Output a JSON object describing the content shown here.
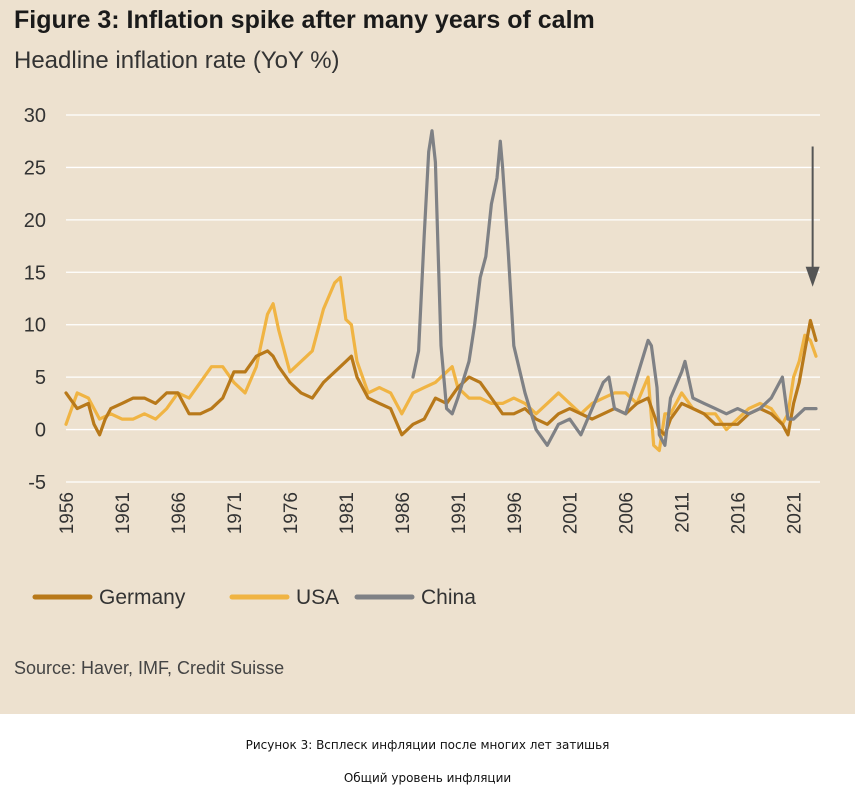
{
  "figure": {
    "title": "Figure 3: Inflation spike after many years of calm",
    "subtitle": "Headline inflation rate (YoY %)",
    "source": "Source: Haver, IMF, Credit Suisse"
  },
  "captions": {
    "line1": "Рисунок 3: Всплеск инфляции после многих лет затишья",
    "line2": "Общий уровень инфляции"
  },
  "colors": {
    "Germany": "#b8791a",
    "USA": "#f0b443",
    "China": "#7f8185",
    "arrow": "#555555",
    "grid": "#ffffff"
  },
  "chart_data": {
    "type": "line",
    "title": "Figure 3: Inflation spike after many years of calm",
    "ylabel": "Headline inflation rate (YoY %)",
    "xlim": [
      1956,
      2023
    ],
    "ylim": [
      -5,
      30
    ],
    "yticks": [
      30,
      25,
      20,
      15,
      10,
      5,
      0,
      -5
    ],
    "xticks": [
      "1956",
      "1961",
      "1966",
      "1971",
      "1976",
      "1981",
      "1986",
      "1991",
      "1996",
      "2001",
      "2006",
      "2011",
      "2016",
      "2021"
    ],
    "legend_position": "bottom",
    "annotation": {
      "type": "arrow",
      "x": 2022.7,
      "from_y": 27,
      "to_y": 14
    },
    "series": [
      {
        "name": "Germany",
        "x": [
          1956,
          1957,
          1958,
          1958.5,
          1959,
          1959.5,
          1960,
          1961,
          1962,
          1963,
          1964,
          1965,
          1966,
          1967,
          1968,
          1969,
          1970,
          1971,
          1972,
          1973,
          1974,
          1974.5,
          1975,
          1976,
          1977,
          1978,
          1979,
          1980,
          1981,
          1981.5,
          1982,
          1983,
          1984,
          1985,
          1986,
          1987,
          1988,
          1989,
          1990,
          1991,
          1992,
          1993,
          1994,
          1995,
          1996,
          1997,
          1998,
          1999,
          2000,
          2001,
          2002,
          2003,
          2004,
          2005,
          2006,
          2007,
          2008,
          2009,
          2009.5,
          2010,
          2011,
          2012,
          2013,
          2014,
          2015,
          2016,
          2017,
          2018,
          2019,
          2020,
          2020.5,
          2021,
          2021.5,
          2022,
          2022.5,
          2023
        ],
        "values": [
          3.5,
          2.0,
          2.5,
          0.5,
          -0.5,
          1.0,
          2.0,
          2.5,
          3.0,
          3.0,
          2.5,
          3.5,
          3.5,
          1.5,
          1.5,
          2.0,
          3.0,
          5.5,
          5.5,
          7.0,
          7.5,
          7.0,
          6.0,
          4.5,
          3.5,
          3.0,
          4.5,
          5.5,
          6.5,
          7.0,
          5.0,
          3.0,
          2.5,
          2.0,
          -0.5,
          0.5,
          1.0,
          3.0,
          2.5,
          4.0,
          5.0,
          4.5,
          3.0,
          1.5,
          1.5,
          2.0,
          1.0,
          0.5,
          1.5,
          2.0,
          1.5,
          1.0,
          1.5,
          2.0,
          1.5,
          2.5,
          3.0,
          0.0,
          -0.5,
          1.0,
          2.5,
          2.0,
          1.5,
          0.5,
          0.5,
          0.5,
          1.5,
          2.0,
          1.5,
          0.5,
          -0.5,
          2.5,
          4.5,
          7.5,
          10.4,
          8.5
        ]
      },
      {
        "name": "USA",
        "x": [
          1956,
          1957,
          1958,
          1959,
          1960,
          1961,
          1962,
          1963,
          1964,
          1965,
          1966,
          1967,
          1968,
          1969,
          1970,
          1971,
          1972,
          1973,
          1974,
          1974.5,
          1975,
          1976,
          1977,
          1978,
          1979,
          1980,
          1980.5,
          1981,
          1981.5,
          1982,
          1983,
          1984,
          1985,
          1986,
          1987,
          1988,
          1989,
          1990,
          1990.5,
          1991,
          1992,
          1993,
          1994,
          1995,
          1996,
          1997,
          1998,
          1999,
          2000,
          2001,
          2002,
          2003,
          2004,
          2005,
          2006,
          2007,
          2008,
          2008.5,
          2009,
          2009.5,
          2010,
          2011,
          2012,
          2013,
          2014,
          2015,
          2016,
          2017,
          2018,
          2019,
          2020,
          2020.5,
          2021,
          2021.5,
          2022,
          2022.5,
          2023
        ],
        "values": [
          0.5,
          3.5,
          3.0,
          1.0,
          1.5,
          1.0,
          1.0,
          1.5,
          1.0,
          2.0,
          3.5,
          3.0,
          4.5,
          6.0,
          6.0,
          4.5,
          3.5,
          6.0,
          11.0,
          12.0,
          9.5,
          5.5,
          6.5,
          7.5,
          11.5,
          14.0,
          14.5,
          10.5,
          10.0,
          6.5,
          3.5,
          4.0,
          3.5,
          1.5,
          3.5,
          4.0,
          4.5,
          5.5,
          6.0,
          4.0,
          3.0,
          3.0,
          2.5,
          2.5,
          3.0,
          2.5,
          1.5,
          2.5,
          3.5,
          2.5,
          1.5,
          2.5,
          3.0,
          3.5,
          3.5,
          2.5,
          5.0,
          -1.5,
          -2.0,
          1.5,
          1.5,
          3.5,
          2.0,
          1.5,
          1.5,
          0.0,
          1.0,
          2.0,
          2.5,
          2.0,
          0.5,
          1.5,
          5.0,
          6.5,
          9.0,
          8.5,
          7.0
        ]
      },
      {
        "name": "China",
        "x": [
          1987,
          1987.5,
          1988,
          1988.4,
          1988.7,
          1989,
          1989.5,
          1990,
          1990.5,
          1991,
          1992,
          1992.5,
          1993,
          1993.5,
          1994,
          1994.5,
          1994.8,
          1995,
          1995.5,
          1996,
          1997,
          1998,
          1999,
          2000,
          2001,
          2002,
          2003,
          2004,
          2004.5,
          2005,
          2006,
          2007,
          2008,
          2008.3,
          2008.8,
          2009,
          2009.5,
          2010,
          2011,
          2011.3,
          2012,
          2013,
          2014,
          2015,
          2016,
          2017,
          2018,
          2019,
          2020,
          2020.5,
          2021,
          2022,
          2023
        ],
        "values": [
          5.0,
          7.5,
          18.5,
          26.5,
          28.5,
          25.5,
          8.0,
          2.0,
          1.5,
          3.0,
          6.5,
          10.0,
          14.5,
          16.5,
          21.5,
          24.0,
          27.5,
          25.0,
          17.0,
          8.0,
          3.5,
          0.0,
          -1.5,
          0.5,
          1.0,
          -0.5,
          2.0,
          4.5,
          5.0,
          2.0,
          1.5,
          5.0,
          8.5,
          8.0,
          4.0,
          -0.5,
          -1.5,
          3.0,
          5.5,
          6.5,
          3.0,
          2.5,
          2.0,
          1.5,
          2.0,
          1.5,
          2.0,
          3.0,
          5.0,
          1.0,
          1.0,
          2.0,
          2.0
        ]
      }
    ]
  },
  "legend": [
    {
      "name": "Germany",
      "label": "Germany"
    },
    {
      "name": "USA",
      "label": "USA"
    },
    {
      "name": "China",
      "label": "China"
    }
  ]
}
